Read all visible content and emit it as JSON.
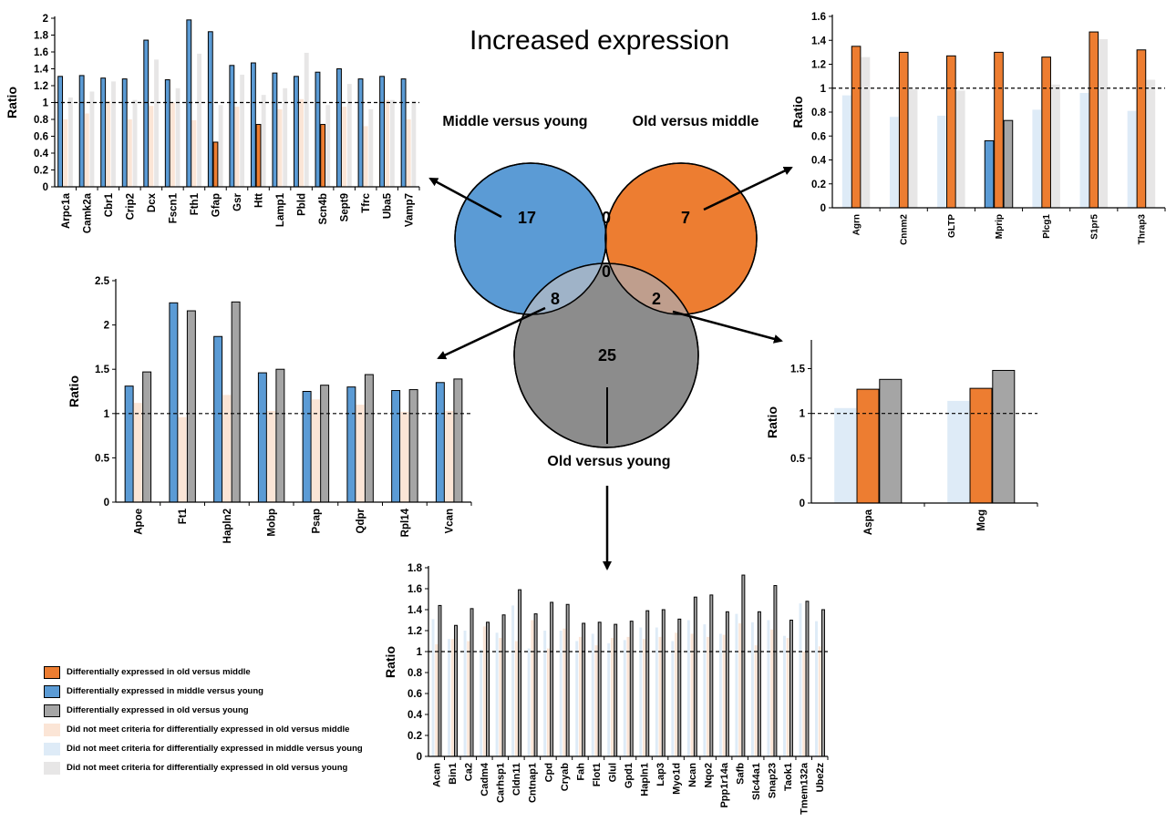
{
  "title": "Increased expression",
  "colors": {
    "orange": "#ED7D31",
    "blue": "#5B9BD5",
    "gray": "#A5A5A5",
    "light_orange": "#FBE5D6",
    "light_blue": "#DEEBF7",
    "light_gray": "#E7E6E6",
    "venn_blue": "#5B9BD5",
    "venn_orange": "#ED7D31",
    "venn_gray": "#8C8C8C",
    "venn_blue_gray": "#9FB3C8",
    "venn_orange_gray": "#BF9E8D"
  },
  "venn": {
    "sets": [
      "Middle versus young",
      "Old versus middle",
      "Old versus young"
    ],
    "counts": {
      "middle_only": "17",
      "old_middle_only": "7",
      "old_young_only": "25",
      "mid_oldmid": "0",
      "all_three": "0",
      "mid_oldyoung": "8",
      "oldmid_oldyoung": "2"
    }
  },
  "legend": [
    {
      "label": "Differentially expressed in old versus middle",
      "color": "#ED7D31",
      "outlined": true
    },
    {
      "label": "Differentially expressed in middle versus young",
      "color": "#5B9BD5",
      "outlined": true
    },
    {
      "label": "Differentially expressed in old versus young",
      "color": "#A5A5A5",
      "outlined": true
    },
    {
      "label": "Did not meet criteria for differentially expressed in old versus middle",
      "color": "#FBE5D6",
      "outlined": false
    },
    {
      "label": "Did not meet criteria for differentially expressed in middle versus young",
      "color": "#DEEBF7",
      "outlined": false
    },
    {
      "label": "Did not meet criteria for differentially expressed in old versus young",
      "color": "#E7E6E6",
      "outlined": false
    }
  ],
  "chart_data": [
    {
      "type": "bar",
      "ylabel": "Ratio",
      "ylim": [
        0,
        2
      ],
      "yticks": [
        "0",
        "0.2",
        "0.4",
        "0.6",
        "0.8",
        "1",
        "1.2",
        "1.4",
        "1.6",
        "1.8",
        "2"
      ],
      "reference_line": 1,
      "categories": [
        "Arpc1a",
        "Camk2a",
        "Cbr1",
        "Crip2",
        "Dcx",
        "Fscn1",
        "Fth1",
        "Gfap",
        "Gsr",
        "Htt",
        "Lamp1",
        "Pbld",
        "Scn4b",
        "Sept9",
        "Tfrc",
        "Uba5",
        "Vamp7"
      ],
      "series": [
        {
          "key": "middle_vs_young",
          "values": [
            1.31,
            1.32,
            1.29,
            1.28,
            1.74,
            1.27,
            1.98,
            1.84,
            1.44,
            1.47,
            1.35,
            1.31,
            1.36,
            1.4,
            1.28,
            1.31,
            1.28
          ],
          "significant": [
            true,
            true,
            true,
            true,
            true,
            true,
            true,
            true,
            true,
            true,
            true,
            true,
            true,
            true,
            true,
            true,
            true
          ]
        },
        {
          "key": "old_vs_middle",
          "values": [
            0.8,
            0.87,
            1.02,
            0.8,
            0.96,
            1.0,
            0.79,
            0.53,
            0.95,
            0.74,
            0.92,
            1.04,
            0.74,
            0.95,
            0.72,
            1.03,
            0.8
          ],
          "significant": [
            false,
            false,
            false,
            false,
            false,
            false,
            false,
            true,
            false,
            true,
            false,
            false,
            true,
            false,
            false,
            false,
            false
          ]
        },
        {
          "key": "old_vs_young",
          "values": [
            1.06,
            1.13,
            1.25,
            1.03,
            1.51,
            1.17,
            1.58,
            0.97,
            1.33,
            1.09,
            1.17,
            1.59,
            0.97,
            1.22,
            0.92,
            1.03,
            1.02
          ],
          "significant": [
            false,
            false,
            false,
            false,
            false,
            false,
            false,
            false,
            false,
            false,
            false,
            false,
            false,
            false,
            false,
            false,
            false
          ]
        }
      ]
    },
    {
      "type": "bar",
      "ylabel": "Ratio",
      "ylim": [
        0,
        1.6
      ],
      "yticks": [
        "0",
        "0.2",
        "0.4",
        "0.6",
        "0.8",
        "1",
        "1.2",
        "1.4",
        "1.6"
      ],
      "reference_line": 1,
      "categories": [
        "Agrn",
        "Cnnm2",
        "GLTP",
        "Mprip",
        "Plcg1",
        "S1pr5",
        "Thrap3"
      ],
      "series": [
        {
          "key": "middle_vs_young",
          "values": [
            0.94,
            0.76,
            0.77,
            0.56,
            0.82,
            0.96,
            0.81
          ],
          "significant": [
            false,
            false,
            false,
            true,
            false,
            false,
            false
          ]
        },
        {
          "key": "old_vs_middle",
          "values": [
            1.35,
            1.3,
            1.27,
            1.3,
            1.26,
            1.47,
            1.32
          ],
          "significant": [
            true,
            true,
            true,
            true,
            true,
            true,
            true
          ]
        },
        {
          "key": "old_vs_young",
          "values": [
            1.26,
            0.99,
            0.98,
            0.73,
            1.03,
            1.41,
            1.07
          ],
          "significant": [
            false,
            false,
            false,
            true,
            false,
            false,
            false
          ]
        }
      ]
    },
    {
      "type": "bar",
      "ylabel": "Ratio",
      "ylim": [
        0,
        2.5
      ],
      "yticks": [
        "0",
        "0.5",
        "1",
        "1.5",
        "2",
        "2.5"
      ],
      "reference_line": 1,
      "categories": [
        "Apoe",
        "Ft1",
        "Hapln2",
        "Mobp",
        "Psap",
        "Qdpr",
        "Rpl14",
        "Vcan"
      ],
      "series": [
        {
          "key": "middle_vs_young",
          "values": [
            1.31,
            2.25,
            1.87,
            1.46,
            1.25,
            1.3,
            1.26,
            1.35
          ],
          "significant": [
            true,
            true,
            true,
            true,
            true,
            true,
            true,
            true
          ]
        },
        {
          "key": "old_vs_middle",
          "values": [
            1.12,
            0.96,
            1.21,
            1.03,
            1.16,
            1.1,
            1.02,
            1.03
          ],
          "significant": [
            false,
            false,
            false,
            false,
            false,
            false,
            false,
            false
          ]
        },
        {
          "key": "old_vs_young",
          "values": [
            1.47,
            2.16,
            2.26,
            1.5,
            1.32,
            1.44,
            1.27,
            1.39
          ],
          "significant": [
            true,
            true,
            true,
            true,
            true,
            true,
            true,
            true
          ]
        }
      ]
    },
    {
      "type": "bar",
      "ylabel": "Ratio",
      "ylim": [
        0,
        1.8
      ],
      "yticks": [
        "0",
        "0.5",
        "1",
        "1.5"
      ],
      "reference_line": 1,
      "categories": [
        "Aspa",
        "Mog"
      ],
      "series": [
        {
          "key": "middle_vs_young",
          "values": [
            1.06,
            1.14
          ],
          "significant": [
            false,
            false
          ]
        },
        {
          "key": "old_vs_middle",
          "values": [
            1.27,
            1.28
          ],
          "significant": [
            true,
            true
          ]
        },
        {
          "key": "old_vs_young",
          "values": [
            1.38,
            1.48
          ],
          "significant": [
            true,
            true
          ]
        }
      ]
    },
    {
      "type": "bar",
      "ylabel": "Ratio",
      "ylim": [
        0,
        1.8
      ],
      "yticks": [
        "0",
        "0.2",
        "0.4",
        "0.6",
        "0.8",
        "1",
        "1.2",
        "1.4",
        "1.6",
        "1.8"
      ],
      "reference_line": 1,
      "categories": [
        "Acan",
        "Bin1",
        "Ca2",
        "Cadm4",
        "Carhsp1",
        "Cldn11",
        "Cntnap1",
        "Cpd",
        "Cryab",
        "Fah",
        "Flot1",
        "Glul",
        "Gpd1",
        "Hapln1",
        "Lap3",
        "Myo1d",
        "Ncan",
        "Nqo2",
        "Ppp1r14a",
        "Safb",
        "Slc44a1",
        "Snap23",
        "Taok1",
        "Tmem132a",
        "Ube2z"
      ],
      "series": [
        {
          "key": "middle_vs_young",
          "values": [
            1.31,
            1.12,
            1.2,
            1.02,
            1.18,
            1.44,
            1.03,
            1.2,
            1.2,
            1.1,
            1.17,
            1.08,
            1.11,
            1.23,
            1.23,
            1.1,
            1.3,
            1.26,
            1.17,
            1.36,
            1.28,
            1.3,
            1.15,
            1.46,
            1.29
          ],
          "significant": [
            false,
            false,
            false,
            false,
            false,
            false,
            false,
            false,
            false,
            false,
            false,
            false,
            false,
            false,
            false,
            false,
            false,
            false,
            false,
            false,
            false,
            false,
            false,
            false,
            false
          ]
        },
        {
          "key": "old_vs_middle",
          "values": [
            1.07,
            1.12,
            1.1,
            1.24,
            1.13,
            1.1,
            1.3,
            1.03,
            1.22,
            1.14,
            1.06,
            1.13,
            1.14,
            1.12,
            1.14,
            1.18,
            1.17,
            1.14,
            1.16,
            1.27,
            1.06,
            1.21,
            1.13,
            1.0,
            1.05
          ],
          "significant": [
            false,
            false,
            false,
            false,
            false,
            false,
            false,
            false,
            false,
            false,
            false,
            false,
            false,
            false,
            false,
            false,
            false,
            false,
            false,
            false,
            false,
            false,
            false,
            false,
            false
          ]
        },
        {
          "key": "old_vs_young",
          "values": [
            1.44,
            1.25,
            1.41,
            1.28,
            1.35,
            1.59,
            1.36,
            1.47,
            1.45,
            1.27,
            1.28,
            1.26,
            1.29,
            1.39,
            1.4,
            1.31,
            1.52,
            1.54,
            1.38,
            1.73,
            1.38,
            1.63,
            1.3,
            1.48,
            1.4
          ],
          "significant": [
            true,
            true,
            true,
            true,
            true,
            true,
            true,
            true,
            true,
            true,
            true,
            true,
            true,
            true,
            true,
            true,
            true,
            true,
            true,
            true,
            true,
            true,
            true,
            true,
            true
          ]
        }
      ]
    }
  ]
}
